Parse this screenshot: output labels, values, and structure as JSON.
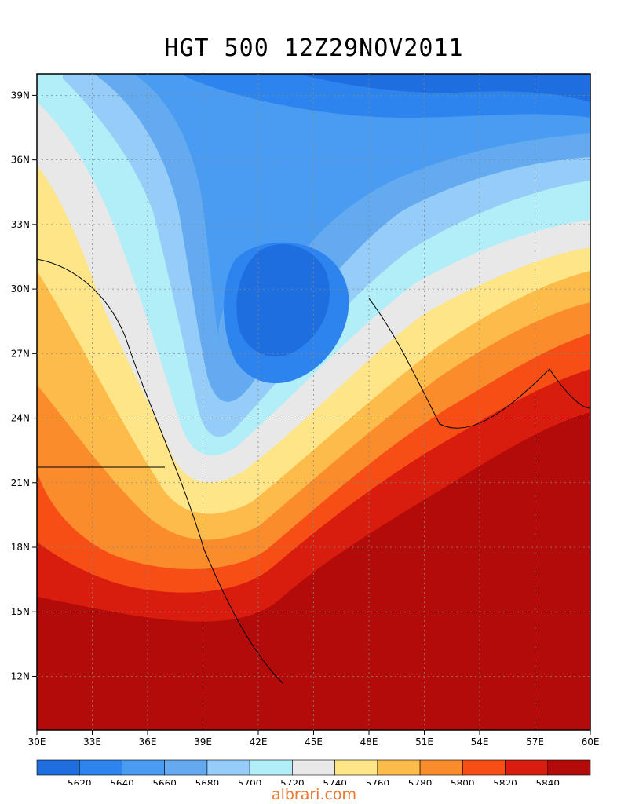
{
  "title": "HGT 500 12Z29NOV2011",
  "lon_range": [
    30,
    60
  ],
  "lat_range": [
    9.5,
    40
  ],
  "lon_ticks": [
    "30E",
    "33E",
    "36E",
    "39E",
    "42E",
    "45E",
    "48E",
    "51E",
    "54E",
    "57E",
    "60E"
  ],
  "lat_ticks": [
    "12N",
    "15N",
    "18N",
    "21N",
    "24N",
    "27N",
    "30N",
    "33N",
    "36N",
    "39N"
  ],
  "colorbar": {
    "colors": [
      "#1e6ee0",
      "#2e84ef",
      "#4a9cf2",
      "#63aaf0",
      "#96cdf8",
      "#b2eef8",
      "#e8e8e8",
      "#fde588",
      "#fdbb4a",
      "#fb8c2c",
      "#f64e14",
      "#d81c0e",
      "#b30a0a"
    ],
    "labels": [
      "5620",
      "5640",
      "5660",
      "5680",
      "5700",
      "5720",
      "5740",
      "5760",
      "5780",
      "5800",
      "5820",
      "5840"
    ]
  },
  "footer": "albrari.com",
  "accent_color": "#e8762c"
}
